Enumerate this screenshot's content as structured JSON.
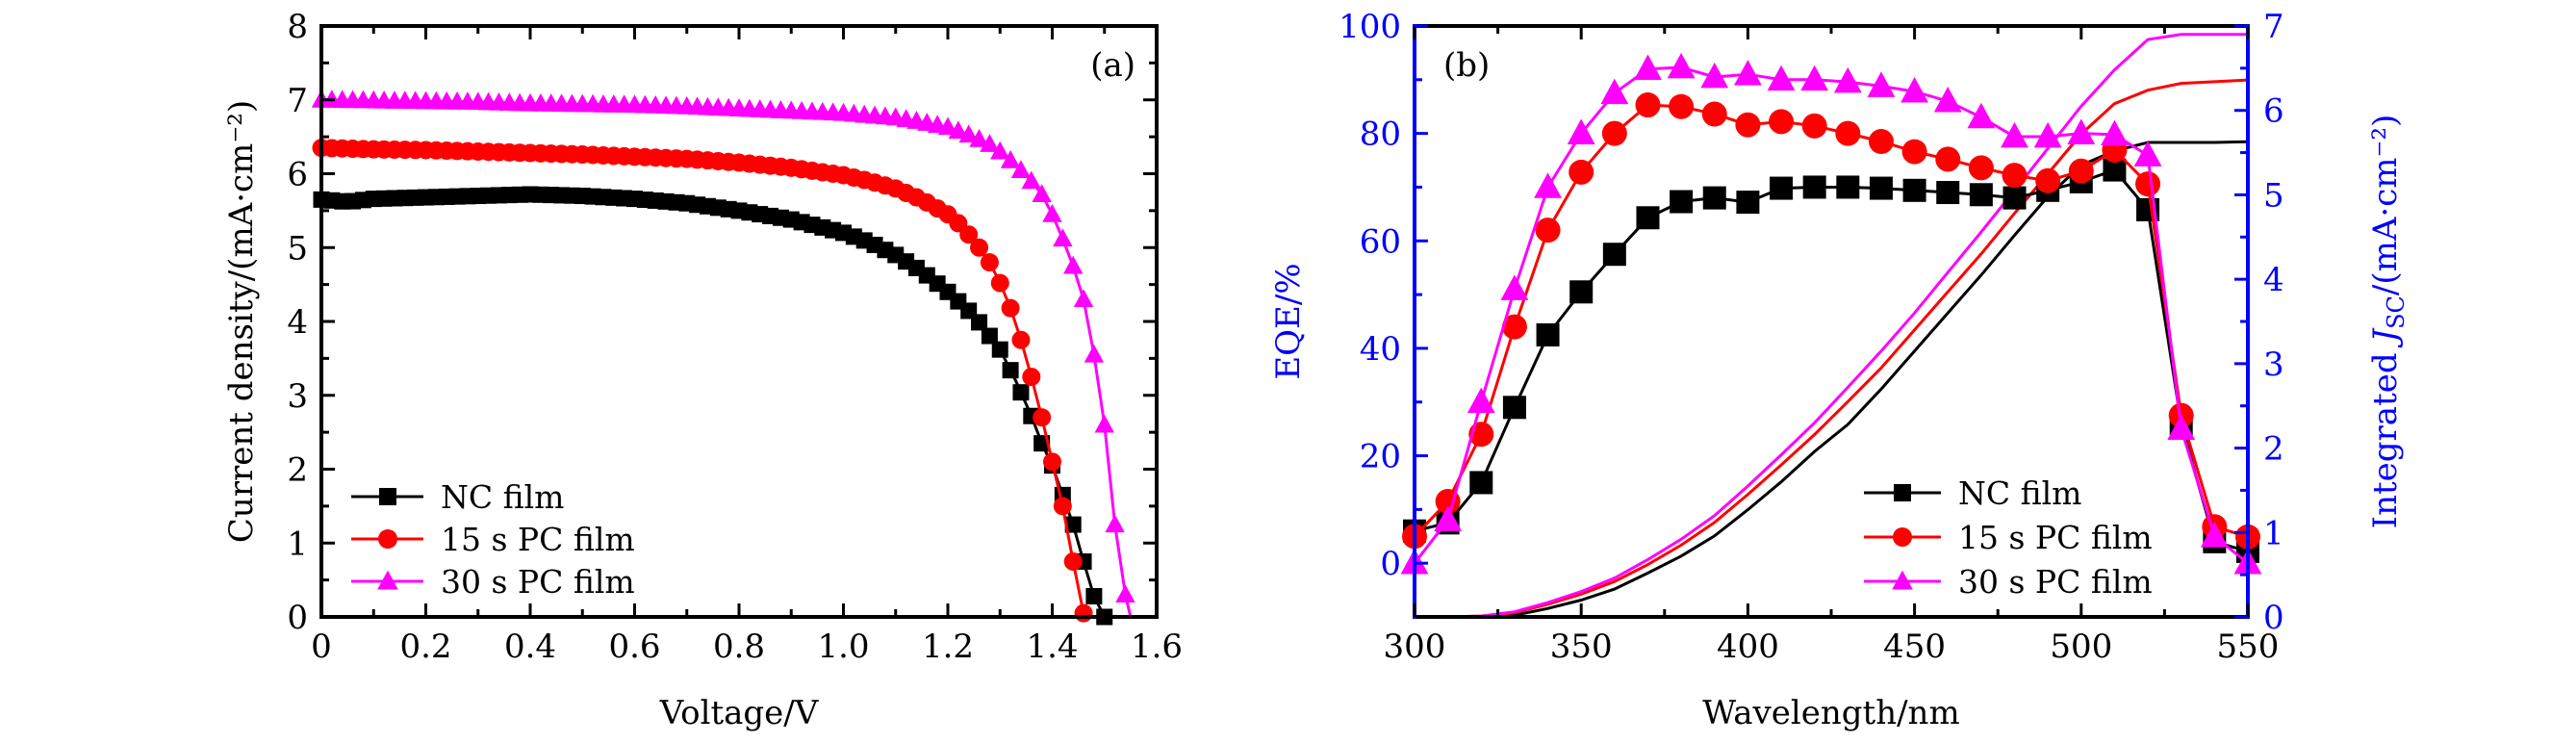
{
  "chart_data": [
    {
      "type": "line",
      "panel_label": "(a)",
      "title": "",
      "xlabel": "Voltage/V",
      "ylabel": "Current density/(mA·cm⁻²)",
      "xlim": [
        0,
        1.6
      ],
      "ylim": [
        0,
        8
      ],
      "xticks": [
        "0",
        "0.2",
        "0.4",
        "0.6",
        "0.8",
        "1.0",
        "1.2",
        "1.4",
        "1.6"
      ],
      "xtick_values": [
        0,
        0.2,
        0.4,
        0.6,
        0.8,
        1.0,
        1.2,
        1.4,
        1.6
      ],
      "yticks": [
        "0",
        "1",
        "2",
        "3",
        "4",
        "5",
        "6",
        "7",
        "8"
      ],
      "ytick_values": [
        0,
        1,
        2,
        3,
        4,
        5,
        6,
        7,
        8
      ],
      "grid": false,
      "legend_position": "bottom-left",
      "series": [
        {
          "name": "NC film",
          "color": "#000000",
          "marker": "square",
          "x": [
            0,
            0.05,
            0.1,
            0.2,
            0.3,
            0.4,
            0.5,
            0.6,
            0.7,
            0.8,
            0.9,
            1.0,
            1.05,
            1.1,
            1.15,
            1.2,
            1.25,
            1.3,
            1.33,
            1.36,
            1.38,
            1.4,
            1.42,
            1.44,
            1.46,
            1.48,
            1.5
          ],
          "y": [
            5.65,
            5.62,
            5.66,
            5.68,
            5.7,
            5.72,
            5.7,
            5.66,
            5.6,
            5.5,
            5.38,
            5.2,
            5.07,
            4.9,
            4.68,
            4.4,
            4.08,
            3.62,
            3.2,
            2.72,
            2.35,
            2.05,
            1.65,
            1.25,
            0.75,
            0.28,
            0
          ]
        },
        {
          "name": "15 s PC film",
          "color": "#ff0000",
          "marker": "circle",
          "x": [
            0,
            0.1,
            0.2,
            0.3,
            0.4,
            0.5,
            0.6,
            0.7,
            0.8,
            0.9,
            1.0,
            1.05,
            1.1,
            1.15,
            1.2,
            1.22,
            1.25,
            1.28,
            1.3,
            1.32,
            1.34,
            1.36,
            1.38,
            1.4,
            1.42,
            1.44,
            1.46
          ],
          "y": [
            6.35,
            6.33,
            6.32,
            6.3,
            6.28,
            6.26,
            6.23,
            6.2,
            6.15,
            6.08,
            5.98,
            5.9,
            5.8,
            5.65,
            5.45,
            5.33,
            5.1,
            4.8,
            4.52,
            4.18,
            3.75,
            3.25,
            2.7,
            2.1,
            1.5,
            0.75,
            0.05
          ]
        },
        {
          "name": "30 s PC film",
          "color": "#ff00ff",
          "marker": "triangle",
          "x": [
            0,
            0.1,
            0.2,
            0.3,
            0.4,
            0.5,
            0.6,
            0.7,
            0.8,
            0.9,
            1.0,
            1.1,
            1.15,
            1.2,
            1.25,
            1.28,
            1.3,
            1.33,
            1.36,
            1.38,
            1.4,
            1.42,
            1.44,
            1.46,
            1.48,
            1.5,
            1.52,
            1.54,
            1.55
          ],
          "y": [
            7.0,
            6.99,
            6.98,
            6.97,
            6.95,
            6.94,
            6.93,
            6.91,
            6.88,
            6.85,
            6.82,
            6.76,
            6.7,
            6.63,
            6.5,
            6.4,
            6.3,
            6.12,
            5.9,
            5.72,
            5.45,
            5.12,
            4.75,
            4.3,
            3.55,
            2.6,
            1.25,
            0.3,
            0
          ]
        }
      ]
    },
    {
      "type": "line",
      "panel_label": "(b)",
      "title": "",
      "xlabel": "Wavelength/nm",
      "ylabel": "EQE/%",
      "ylabel_right": "Integrated J_SC/(mA·cm⁻²)",
      "ylabel_right_parts": {
        "prefix": "Integrated ",
        "italic": "J",
        "sub": "SC",
        "suffix": "/(mA·cm⁻²)"
      },
      "xlim": [
        300,
        550
      ],
      "ylim": [
        -10,
        100
      ],
      "ylim_right": [
        0,
        7
      ],
      "xticks": [
        "300",
        "350",
        "400",
        "450",
        "500",
        "550"
      ],
      "xtick_values": [
        300,
        350,
        400,
        450,
        500,
        550
      ],
      "yticks": [
        "0",
        "20",
        "40",
        "60",
        "80",
        "100"
      ],
      "ytick_values": [
        0,
        20,
        40,
        60,
        80,
        100
      ],
      "yticks_right": [
        "0",
        "1",
        "2",
        "3",
        "4",
        "5",
        "6",
        "7"
      ],
      "ytick_values_right": [
        0,
        1,
        2,
        3,
        4,
        5,
        6,
        7
      ],
      "left_axis_color": "#0000ff",
      "right_axis_color": "#0000ff",
      "grid": false,
      "legend_position": "bottom-right",
      "x": [
        300,
        310,
        320,
        330,
        340,
        350,
        360,
        370,
        380,
        390,
        400,
        410,
        420,
        430,
        440,
        450,
        460,
        470,
        480,
        490,
        500,
        510,
        520,
        530,
        540,
        550
      ],
      "series": [
        {
          "name": "NC film",
          "color": "#000000",
          "marker": "square",
          "axis": "left",
          "values": [
            6.0,
            7.5,
            15.0,
            29.0,
            42.5,
            50.5,
            57.5,
            64.3,
            67.3,
            68.0,
            67.2,
            69.8,
            70.0,
            70.0,
            69.8,
            69.4,
            69.0,
            68.6,
            68.0,
            69.4,
            71.0,
            73.2,
            65.8,
            26.0,
            4.0,
            2.2
          ],
          "legend_in": true
        },
        {
          "name": "15 s PC film",
          "color": "#ff0000",
          "marker": "circle",
          "axis": "left",
          "values": [
            5.0,
            11.5,
            24.0,
            44.0,
            62.0,
            72.8,
            80.0,
            85.3,
            85.0,
            83.6,
            81.6,
            82.2,
            81.4,
            80.0,
            78.5,
            76.6,
            75.2,
            73.6,
            72.2,
            71.2,
            73.0,
            76.9,
            70.6,
            27.5,
            6.8,
            4.9
          ]
        },
        {
          "name": "30 s PC film",
          "color": "#ff00ff",
          "marker": "triangle",
          "axis": "left",
          "values": [
            0.0,
            8.0,
            30.0,
            51.0,
            70.0,
            80.0,
            87.5,
            92.0,
            92.3,
            90.5,
            91.0,
            90.0,
            90.0,
            89.6,
            88.8,
            87.8,
            86.0,
            83.0,
            79.4,
            79.4,
            80.0,
            79.8,
            75.9,
            25.0,
            5.0,
            0.0
          ]
        },
        {
          "name": "NC film (integrated JSC)",
          "color": "#000000",
          "marker": "none",
          "axis": "right",
          "values": [
            0,
            0,
            0.0,
            0.02,
            0.1,
            0.2,
            0.33,
            0.52,
            0.72,
            0.96,
            1.27,
            1.6,
            1.96,
            2.28,
            2.7,
            3.15,
            3.6,
            4.05,
            4.52,
            4.98,
            5.35,
            5.52,
            5.62,
            5.62,
            5.62,
            5.63
          ]
        },
        {
          "name": "15 s PC film (integrated JSC)",
          "color": "#ff0000",
          "marker": "none",
          "axis": "right",
          "values": [
            0,
            0,
            0.01,
            0.05,
            0.15,
            0.27,
            0.42,
            0.62,
            0.85,
            1.12,
            1.45,
            1.8,
            2.16,
            2.55,
            2.95,
            3.4,
            3.85,
            4.3,
            4.78,
            5.25,
            5.72,
            6.08,
            6.24,
            6.32,
            6.34,
            6.36
          ]
        },
        {
          "name": "30 s PC film (integrated JSC)",
          "color": "#ff00ff",
          "marker": "none",
          "axis": "right",
          "values": [
            0,
            0,
            0.01,
            0.06,
            0.17,
            0.3,
            0.46,
            0.68,
            0.92,
            1.2,
            1.55,
            1.92,
            2.3,
            2.72,
            3.15,
            3.6,
            4.08,
            4.56,
            5.05,
            5.55,
            6.05,
            6.48,
            6.84,
            6.9,
            6.9,
            6.9
          ]
        }
      ]
    }
  ]
}
